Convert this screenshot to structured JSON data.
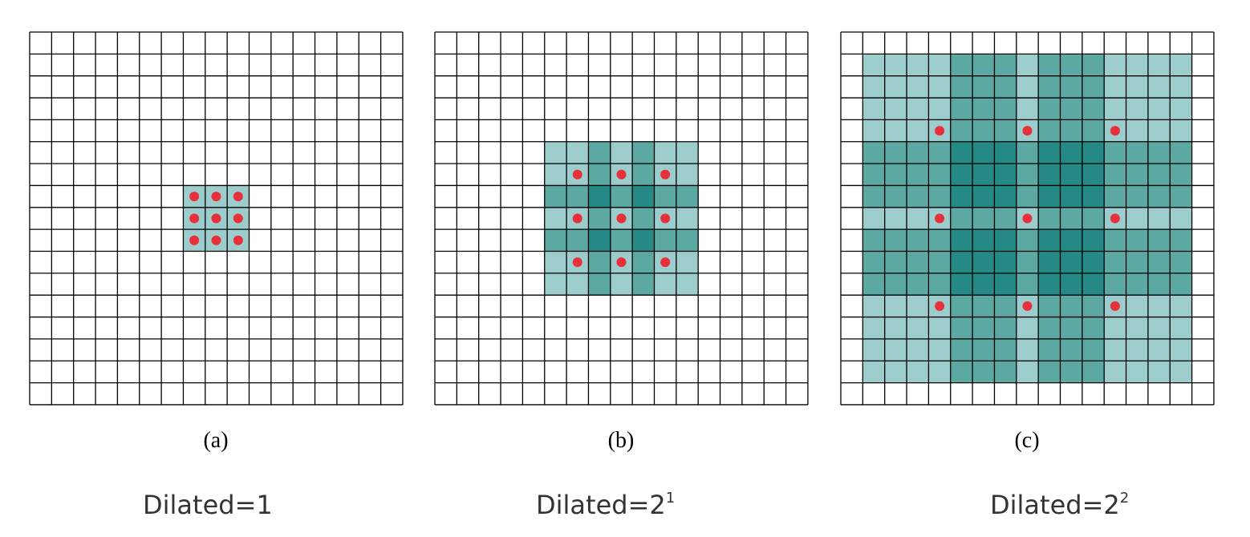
{
  "grid": {
    "rows": 17,
    "cols": 17
  },
  "colors": {
    "light": "#9dcccc",
    "medium": "#5ca8a3",
    "dark": "#258a86",
    "dot": "#e8303b",
    "line": "#000000"
  },
  "panels": [
    {
      "label": "(a)",
      "caption": {
        "prefix": "Dilated",
        "equals": "=",
        "base": "1",
        "sup": ""
      },
      "dilation": 1,
      "receptive_field_size": 3,
      "dots_per_side": 3
    },
    {
      "label": "(b)",
      "caption": {
        "prefix": "Dilated",
        "equals": "=",
        "base": "2",
        "sup": "1"
      },
      "dilation": 2,
      "receptive_field_size": 7,
      "dots_per_side": 3
    },
    {
      "label": "(c)",
      "caption": {
        "prefix": "Dilated",
        "equals": "=",
        "base": "2",
        "sup": "2"
      },
      "dilation": 4,
      "receptive_field_size": 15,
      "dots_per_side": 3
    }
  ]
}
